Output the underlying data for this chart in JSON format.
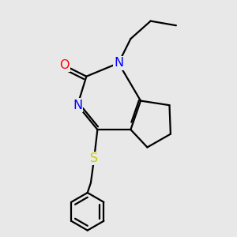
{
  "background_color": "#e8e8e8",
  "atom_colors": {
    "O": "#ff0000",
    "N": "#0000ff",
    "S": "#cccc00",
    "C": "#000000"
  },
  "bond_width": 1.6,
  "font_size_atoms": 11.5
}
